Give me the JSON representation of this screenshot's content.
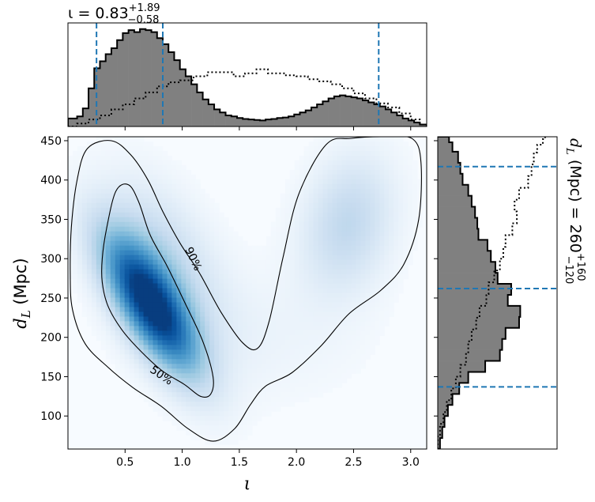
{
  "chart_data": [
    {
      "type": "heatmap",
      "panel": "joint",
      "xlabel": "ι",
      "ylabel_main": "d",
      "ylabel_sub": "L",
      "ylabel_unit": " (Mpc)",
      "xlim": [
        0.0,
        3.14
      ],
      "ylim": [
        58,
        455
      ],
      "xticks": [
        0.5,
        1.0,
        1.5,
        2.0,
        2.5,
        3.0
      ],
      "xtick_labels": [
        "0.5",
        "1.0",
        "1.5",
        "2.0",
        "2.5",
        "3.0"
      ],
      "yticks": [
        100,
        150,
        200,
        250,
        300,
        350,
        400,
        450
      ],
      "ytick_labels": [
        "100",
        "150",
        "200",
        "250",
        "300",
        "350",
        "400",
        "450"
      ],
      "colormap": "Blues",
      "density_blobs": [
        {
          "x": 0.72,
          "y": 242,
          "sx": 0.3,
          "sy": 62,
          "rho": -0.72,
          "weight": 1.0
        },
        {
          "x": 0.85,
          "y": 300,
          "sx": 0.35,
          "sy": 70,
          "rho": -0.5,
          "weight": 0.25
        },
        {
          "x": 2.45,
          "y": 345,
          "sx": 0.28,
          "sy": 60,
          "rho": 0.2,
          "weight": 0.28
        },
        {
          "x": 1.6,
          "y": 200,
          "sx": 0.7,
          "sy": 60,
          "rho": 0.0,
          "weight": 0.06
        }
      ],
      "contours": [
        {
          "level_label": "50%",
          "points": [
            [
              0.3,
              300
            ],
            [
              0.34,
              340
            ],
            [
              0.42,
              386
            ],
            [
              0.53,
              394
            ],
            [
              0.62,
              372
            ],
            [
              0.72,
              330
            ],
            [
              0.87,
              290
            ],
            [
              1.02,
              245
            ],
            [
              1.18,
              195
            ],
            [
              1.27,
              150
            ],
            [
              1.25,
              128
            ],
            [
              1.16,
              125
            ],
            [
              1.02,
              140
            ],
            [
              0.82,
              158
            ],
            [
              0.62,
              185
            ],
            [
              0.47,
              210
            ],
            [
              0.35,
              240
            ],
            [
              0.3,
              270
            ]
          ],
          "label_pos": [
            0.82,
            152
          ],
          "label_angle": 34
        },
        {
          "level_label": "90%",
          "points": [
            [
              0.02,
              280
            ],
            [
              0.03,
              340
            ],
            [
              0.08,
              400
            ],
            [
              0.17,
              440
            ],
            [
              0.38,
              450
            ],
            [
              0.55,
              432
            ],
            [
              0.7,
              400
            ],
            [
              0.83,
              360
            ],
            [
              0.98,
              320
            ],
            [
              1.15,
              282
            ],
            [
              1.34,
              232
            ],
            [
              1.53,
              193
            ],
            [
              1.66,
              186
            ],
            [
              1.76,
              220
            ],
            [
              1.88,
              300
            ],
            [
              2.02,
              382
            ],
            [
              2.26,
              445
            ],
            [
              2.48,
              453
            ],
            [
              2.8,
              455
            ],
            [
              3.02,
              452
            ],
            [
              3.09,
              422
            ],
            [
              3.07,
              350
            ],
            [
              2.94,
              293
            ],
            [
              2.74,
              260
            ],
            [
              2.46,
              230
            ],
            [
              2.22,
              190
            ],
            [
              1.96,
              155
            ],
            [
              1.73,
              138
            ],
            [
              1.6,
              115
            ],
            [
              1.46,
              84
            ],
            [
              1.27,
              68
            ],
            [
              1.05,
              84
            ],
            [
              0.82,
              112
            ],
            [
              0.57,
              136
            ],
            [
              0.35,
              162
            ],
            [
              0.15,
              192
            ],
            [
              0.04,
              235
            ]
          ],
          "label_pos": [
            1.1,
            300
          ],
          "label_angle": 65
        }
      ]
    },
    {
      "type": "bar",
      "panel": "top-marginal",
      "title_prefix": "ι = 0.83",
      "title_sup": "+1.89",
      "title_sub": "−0.58",
      "bins": [
        [
          0.0,
          0.08,
          0.08
        ],
        [
          0.08,
          0.13,
          0.1
        ],
        [
          0.13,
          0.18,
          0.18
        ],
        [
          0.18,
          0.23,
          0.38
        ],
        [
          0.23,
          0.28,
          0.58
        ],
        [
          0.28,
          0.33,
          0.65
        ],
        [
          0.33,
          0.38,
          0.72
        ],
        [
          0.38,
          0.43,
          0.78
        ],
        [
          0.43,
          0.48,
          0.86
        ],
        [
          0.48,
          0.53,
          0.93
        ],
        [
          0.53,
          0.58,
          0.96
        ],
        [
          0.58,
          0.63,
          0.94
        ],
        [
          0.63,
          0.68,
          0.97
        ],
        [
          0.68,
          0.73,
          0.96
        ],
        [
          0.73,
          0.78,
          0.94
        ],
        [
          0.78,
          0.83,
          0.88
        ],
        [
          0.83,
          0.88,
          0.82
        ],
        [
          0.88,
          0.93,
          0.74
        ],
        [
          0.93,
          0.98,
          0.66
        ],
        [
          0.98,
          1.03,
          0.57
        ],
        [
          1.03,
          1.08,
          0.5
        ],
        [
          1.08,
          1.13,
          0.42
        ],
        [
          1.13,
          1.18,
          0.34
        ],
        [
          1.18,
          1.23,
          0.27
        ],
        [
          1.23,
          1.28,
          0.22
        ],
        [
          1.28,
          1.33,
          0.17
        ],
        [
          1.33,
          1.38,
          0.14
        ],
        [
          1.38,
          1.43,
          0.11
        ],
        [
          1.43,
          1.48,
          0.1
        ],
        [
          1.48,
          1.53,
          0.085
        ],
        [
          1.53,
          1.58,
          0.075
        ],
        [
          1.58,
          1.63,
          0.07
        ],
        [
          1.63,
          1.68,
          0.065
        ],
        [
          1.68,
          1.73,
          0.06
        ],
        [
          1.73,
          1.78,
          0.07
        ],
        [
          1.78,
          1.83,
          0.075
        ],
        [
          1.83,
          1.88,
          0.085
        ],
        [
          1.88,
          1.93,
          0.09
        ],
        [
          1.93,
          1.98,
          0.1
        ],
        [
          1.98,
          2.03,
          0.12
        ],
        [
          2.03,
          2.08,
          0.14
        ],
        [
          2.08,
          2.13,
          0.16
        ],
        [
          2.13,
          2.18,
          0.19
        ],
        [
          2.18,
          2.23,
          0.22
        ],
        [
          2.23,
          2.28,
          0.25
        ],
        [
          2.28,
          2.33,
          0.28
        ],
        [
          2.33,
          2.38,
          0.3
        ],
        [
          2.38,
          2.43,
          0.31
        ],
        [
          2.43,
          2.48,
          0.3
        ],
        [
          2.48,
          2.53,
          0.29
        ],
        [
          2.53,
          2.58,
          0.28
        ],
        [
          2.58,
          2.63,
          0.26
        ],
        [
          2.63,
          2.68,
          0.24
        ],
        [
          2.68,
          2.73,
          0.22
        ],
        [
          2.73,
          2.78,
          0.2
        ],
        [
          2.78,
          2.83,
          0.17
        ],
        [
          2.83,
          2.88,
          0.14
        ],
        [
          2.88,
          2.93,
          0.11
        ],
        [
          2.93,
          2.98,
          0.08
        ],
        [
          2.98,
          3.03,
          0.06
        ],
        [
          3.03,
          3.08,
          0.04
        ],
        [
          3.08,
          3.14,
          0.02
        ]
      ],
      "prior": [
        [
          0.0,
          0.0
        ],
        [
          0.08,
          0.03
        ],
        [
          0.18,
          0.07
        ],
        [
          0.28,
          0.11
        ],
        [
          0.38,
          0.17
        ],
        [
          0.48,
          0.22
        ],
        [
          0.58,
          0.28
        ],
        [
          0.68,
          0.34
        ],
        [
          0.78,
          0.4
        ],
        [
          0.88,
          0.44
        ],
        [
          0.98,
          0.46
        ],
        [
          1.1,
          0.5
        ],
        [
          1.22,
          0.54
        ],
        [
          1.35,
          0.54
        ],
        [
          1.45,
          0.5
        ],
        [
          1.55,
          0.53
        ],
        [
          1.65,
          0.57
        ],
        [
          1.75,
          0.53
        ],
        [
          1.9,
          0.51
        ],
        [
          2.0,
          0.5
        ],
        [
          2.1,
          0.47
        ],
        [
          2.2,
          0.45
        ],
        [
          2.3,
          0.42
        ],
        [
          2.4,
          0.38
        ],
        [
          2.5,
          0.33
        ],
        [
          2.6,
          0.28
        ],
        [
          2.7,
          0.23
        ],
        [
          2.8,
          0.19
        ],
        [
          2.9,
          0.13
        ],
        [
          3.0,
          0.07
        ],
        [
          3.08,
          0.02
        ],
        [
          3.14,
          0.0
        ]
      ],
      "quantile_lines": [
        0.25,
        0.83,
        2.72
      ],
      "ymax": 1.0
    },
    {
      "type": "bar",
      "panel": "right-marginal",
      "orientation": "horizontal",
      "title_main": "d",
      "title_sub_label": "L",
      "title_mid": " (Mpc) = 260",
      "title_sup": "+160",
      "title_sub": "−120",
      "bins": [
        [
          58,
          72,
          0.02
        ],
        [
          72,
          86,
          0.04
        ],
        [
          86,
          100,
          0.06
        ],
        [
          100,
          114,
          0.09
        ],
        [
          114,
          128,
          0.13
        ],
        [
          128,
          142,
          0.19
        ],
        [
          142,
          156,
          0.27
        ],
        [
          156,
          170,
          0.42
        ],
        [
          170,
          184,
          0.55
        ],
        [
          184,
          198,
          0.57
        ],
        [
          198,
          212,
          0.6
        ],
        [
          212,
          226,
          0.72
        ],
        [
          226,
          240,
          0.73
        ],
        [
          240,
          254,
          0.62
        ],
        [
          254,
          268,
          0.65
        ],
        [
          268,
          282,
          0.53
        ],
        [
          282,
          296,
          0.51
        ],
        [
          296,
          310,
          0.47
        ],
        [
          310,
          324,
          0.44
        ],
        [
          324,
          338,
          0.36
        ],
        [
          338,
          352,
          0.35
        ],
        [
          352,
          366,
          0.33
        ],
        [
          366,
          380,
          0.3
        ],
        [
          380,
          394,
          0.27
        ],
        [
          394,
          408,
          0.22
        ],
        [
          408,
          422,
          0.2
        ],
        [
          422,
          436,
          0.18
        ],
        [
          436,
          448,
          0.13
        ],
        [
          448,
          455,
          0.1
        ]
      ],
      "prior": [
        [
          58,
          0.0
        ],
        [
          75,
          0.02
        ],
        [
          90,
          0.05
        ],
        [
          105,
          0.08
        ],
        [
          120,
          0.12
        ],
        [
          135,
          0.16
        ],
        [
          150,
          0.2
        ],
        [
          165,
          0.25
        ],
        [
          180,
          0.27
        ],
        [
          195,
          0.3
        ],
        [
          210,
          0.34
        ],
        [
          225,
          0.37
        ],
        [
          240,
          0.43
        ],
        [
          255,
          0.45
        ],
        [
          270,
          0.5
        ],
        [
          285,
          0.55
        ],
        [
          300,
          0.58
        ],
        [
          315,
          0.6
        ],
        [
          330,
          0.66
        ],
        [
          345,
          0.7
        ],
        [
          360,
          0.68
        ],
        [
          375,
          0.72
        ],
        [
          390,
          0.8
        ],
        [
          405,
          0.83
        ],
        [
          420,
          0.85
        ],
        [
          435,
          0.88
        ],
        [
          445,
          0.93
        ],
        [
          452,
          0.95
        ],
        [
          455,
          0.96
        ]
      ],
      "quantile_lines": [
        137,
        262,
        417
      ],
      "xmax": 1.0
    }
  ],
  "colors": {
    "hist_fill": "#808080",
    "hist_edge": "#000000",
    "quantile_line": "#1f77b4",
    "contour": "#000000"
  }
}
